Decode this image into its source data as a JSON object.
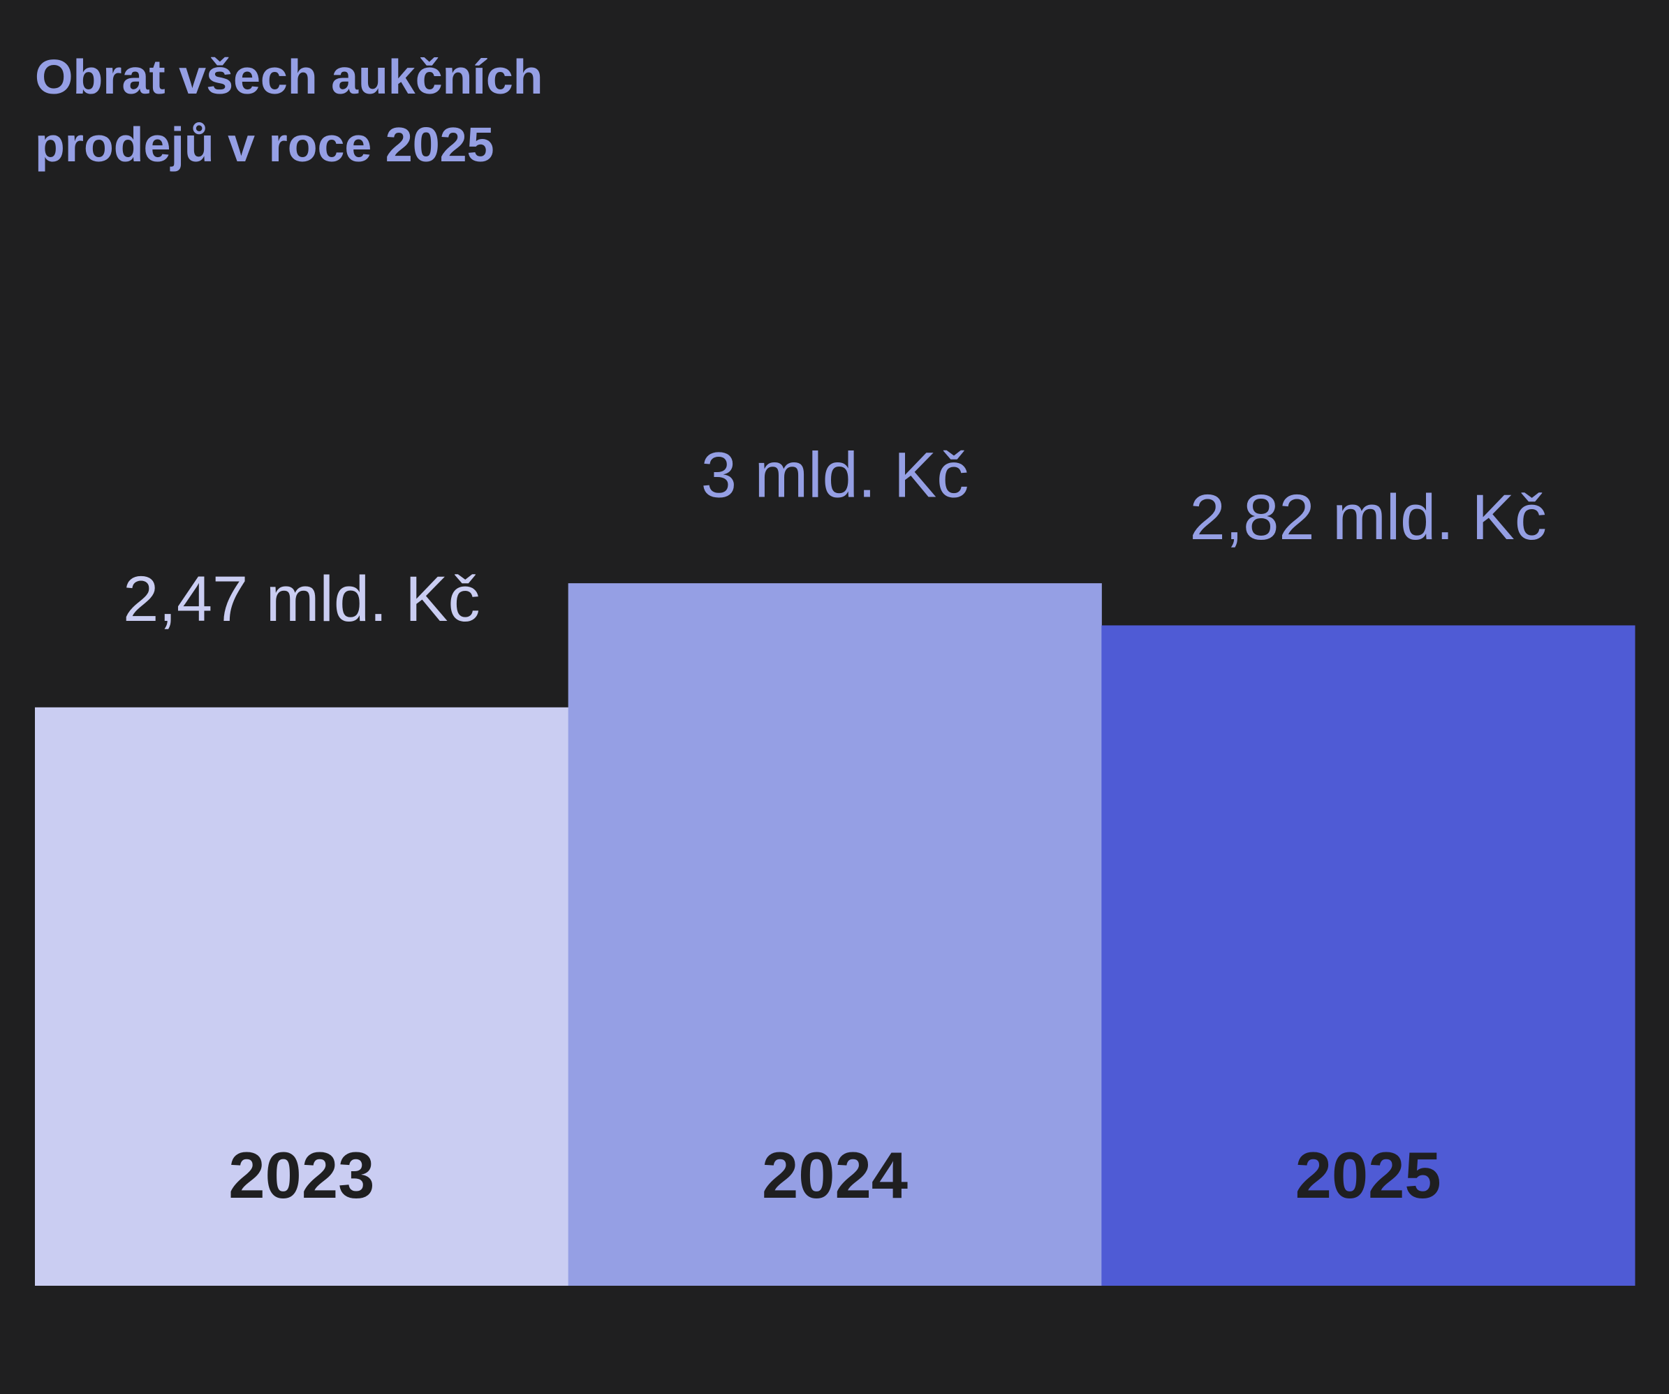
{
  "chart_data": {
    "type": "bar",
    "title": "Obrat všech aukčních prodejů v roce 2025",
    "categories": [
      "2023",
      "2024",
      "2025"
    ],
    "values": [
      2.47,
      3,
      2.82
    ],
    "value_labels": [
      "2,47 mld. Kč",
      "3 mld. Kč",
      "2,82 mld. Kč"
    ],
    "colors": [
      "#cacdf2",
      "#959fe4",
      "#4f5bd5"
    ],
    "label_colors": [
      "#cacdf2",
      "#959fe4",
      "#959fe4"
    ]
  }
}
